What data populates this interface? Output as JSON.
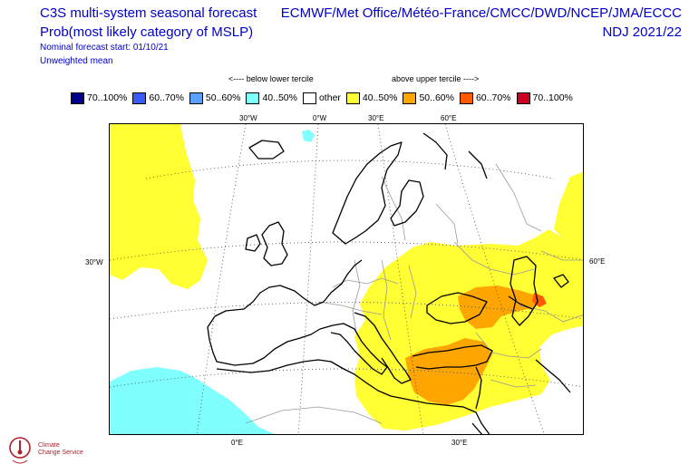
{
  "header": {
    "title": "C3S multi-system seasonal forecast",
    "subtitle": "Prob(most likely category of MSLP)",
    "forecast_start": "Nominal forecast start: 01/10/21",
    "mean_type": "Unweighted mean",
    "centres": "ECMWF/Met Office/Météo-France/CMCC/DWD/NCEP/JMA/ECCC",
    "period": "NDJ 2021/22"
  },
  "legend": {
    "below_note": "<---- below lower tercile",
    "above_note": "above upper tercile ---->",
    "items": [
      {
        "label": "70..100%",
        "color": "#00008b"
      },
      {
        "label": "60..70%",
        "color": "#3a5cf5"
      },
      {
        "label": "50..60%",
        "color": "#5aa0ff"
      },
      {
        "label": "40..50%",
        "color": "#80ffff"
      },
      {
        "label": "other",
        "color": "#ffffff"
      },
      {
        "label": "40..50%",
        "color": "#ffff33"
      },
      {
        "label": "50..60%",
        "color": "#ffa500"
      },
      {
        "label": "60..70%",
        "color": "#ff5a00"
      },
      {
        "label": "70..100%",
        "color": "#cc0022"
      }
    ]
  },
  "map": {
    "lon_ticks_top": [
      "30°W",
      "0°W",
      "30°E",
      "60°E"
    ],
    "lon_ticks_bottom": [
      "0°E",
      "30°E"
    ],
    "lat_tick_left": "30°W",
    "lat_tick_right": "60°E"
  },
  "logo": {
    "line1": "Climate",
    "line2": "Change Service"
  }
}
